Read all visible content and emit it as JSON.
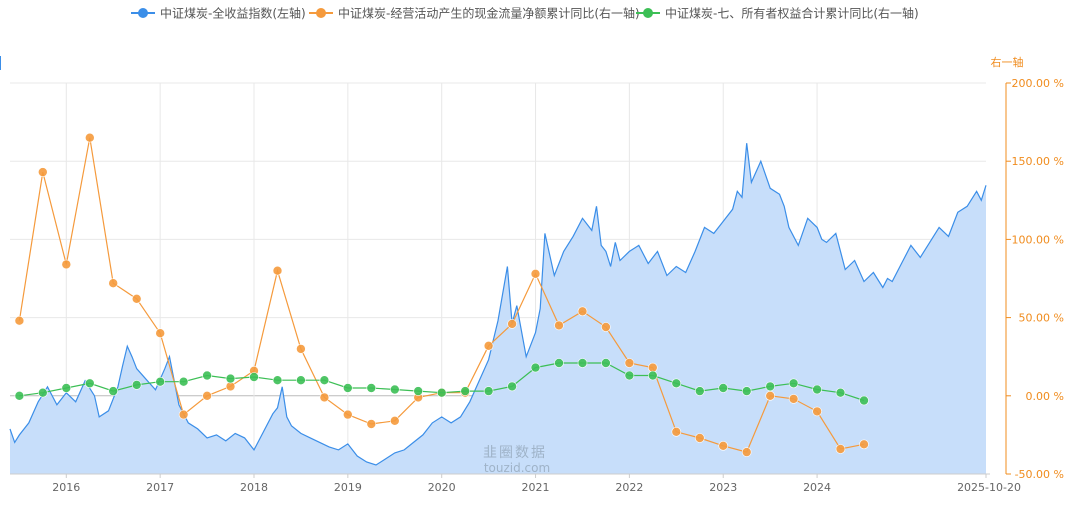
{
  "chart_data": {
    "type": "line",
    "legend_position": "top-center",
    "grid": true,
    "left_axis": {
      "label": "",
      "ylim": [
        -30,
        230
      ],
      "ticks": []
    },
    "right_axis": {
      "label": "右一轴",
      "ylim": [
        -50,
        200
      ],
      "tick_labels": [
        "200.00 %",
        "150.00 %",
        "100.00 %",
        "50.00 %",
        "0.00 %",
        "-50.00 %"
      ],
      "tick_values": [
        200,
        150,
        100,
        50,
        0,
        -50
      ]
    },
    "x_range": [
      2015.4,
      2025.8
    ],
    "x_tick_labels": [
      "2016",
      "2017",
      "2018",
      "2019",
      "2020",
      "2021",
      "2022",
      "2023",
      "2024",
      "2025-10-20"
    ],
    "x_tick_values": [
      2016,
      2017,
      2018,
      2019,
      2020,
      2021,
      2022,
      2023,
      2024,
      2025.8
    ],
    "series": [
      {
        "name": "中证煤炭-全收益指数(左轴)",
        "axis": "left",
        "kind": "area",
        "color": "#3b8ee8",
        "fill": "#c7defa",
        "x": [
          2015.4,
          2015.45,
          2015.5,
          2015.6,
          2015.7,
          2015.8,
          2015.9,
          2016.0,
          2016.1,
          2016.2,
          2016.3,
          2016.35,
          2016.45,
          2016.55,
          2016.6,
          2016.65,
          2016.7,
          2016.75,
          2016.85,
          2016.95,
          2017.05,
          2017.1,
          2017.2,
          2017.3,
          2017.4,
          2017.5,
          2017.6,
          2017.7,
          2017.8,
          2017.9,
          2018.0,
          2018.1,
          2018.2,
          2018.25,
          2018.3,
          2018.35,
          2018.4,
          2018.5,
          2018.6,
          2018.7,
          2018.8,
          2018.9,
          2019.0,
          2019.1,
          2019.2,
          2019.3,
          2019.4,
          2019.5,
          2019.6,
          2019.7,
          2019.8,
          2019.9,
          2020.0,
          2020.1,
          2020.2,
          2020.3,
          2020.4,
          2020.5,
          2020.6,
          2020.65,
          2020.7,
          2020.75,
          2020.8,
          2020.9,
          2021.0,
          2021.05,
          2021.1,
          2021.2,
          2021.3,
          2021.4,
          2021.5,
          2021.6,
          2021.65,
          2021.7,
          2021.75,
          2021.8,
          2021.85,
          2021.9,
          2022.0,
          2022.1,
          2022.2,
          2022.3,
          2022.4,
          2022.5,
          2022.6,
          2022.7,
          2022.8,
          2022.9,
          2023.0,
          2023.1,
          2023.15,
          2023.2,
          2023.25,
          2023.3,
          2023.4,
          2023.5,
          2023.6,
          2023.65,
          2023.7,
          2023.8,
          2023.9,
          2024.0,
          2024.05,
          2024.1,
          2024.2,
          2024.3,
          2024.4,
          2024.5,
          2024.6,
          2024.7,
          2024.75,
          2024.8,
          2024.9,
          2025.0,
          2025.1,
          2025.2,
          2025.3,
          2025.4,
          2025.5,
          2025.6,
          2025.7,
          2025.75,
          2025.8
        ],
        "values": [
          0,
          -9,
          -4,
          4,
          18,
          28,
          16,
          24,
          18,
          32,
          22,
          8,
          12,
          28,
          42,
          55,
          48,
          40,
          33,
          26,
          40,
          48,
          16,
          4,
          0,
          -6,
          -4,
          -8,
          -3,
          -6,
          -14,
          -2,
          10,
          14,
          28,
          8,
          2,
          -3,
          -6,
          -9,
          -12,
          -14,
          -10,
          -18,
          -22,
          -24,
          -20,
          -16,
          -14,
          -9,
          -4,
          4,
          8,
          4,
          8,
          18,
          32,
          46,
          72,
          90,
          108,
          70,
          82,
          48,
          64,
          80,
          130,
          102,
          118,
          128,
          140,
          132,
          148,
          122,
          118,
          108,
          124,
          112,
          118,
          122,
          110,
          118,
          102,
          108,
          104,
          118,
          134,
          130,
          138,
          146,
          158,
          154,
          190,
          164,
          178,
          160,
          156,
          148,
          134,
          122,
          140,
          134,
          126,
          124,
          130,
          106,
          112,
          98,
          104,
          94,
          100,
          98,
          110,
          122,
          114,
          124,
          134,
          128,
          144,
          148,
          158,
          152,
          162
        ]
      },
      {
        "name": "中证煤炭-经营活动产生的现金流量净额累计同比(右一轴)",
        "axis": "right",
        "kind": "line-markers",
        "color": "#f59a3c",
        "x": [
          2015.5,
          2015.75,
          2016.0,
          2016.25,
          2016.5,
          2016.75,
          2017.0,
          2017.25,
          2017.5,
          2017.75,
          2018.0,
          2018.25,
          2018.5,
          2018.75,
          2019.0,
          2019.25,
          2019.5,
          2019.75,
          2020.0,
          2020.25,
          2020.5,
          2020.75,
          2021.0,
          2021.25,
          2021.5,
          2021.75,
          2022.0,
          2022.25,
          2022.5,
          2022.75,
          2023.0,
          2023.25,
          2023.5,
          2023.75,
          2024.0,
          2024.25,
          2024.5
        ],
        "values": [
          48,
          143,
          84,
          165,
          72,
          62,
          40,
          -12,
          0,
          6,
          16,
          80,
          30,
          -1,
          -12,
          -18,
          -16,
          -1,
          2,
          2,
          32,
          46,
          78,
          45,
          54,
          44,
          21,
          18,
          -23,
          -27,
          -32,
          -36,
          0,
          -2,
          -10,
          -34,
          -31
        ]
      },
      {
        "name": "中证煤炭-七、所有者权益合计累计同比(右一轴)",
        "axis": "right",
        "kind": "line-markers",
        "color": "#3cbf55",
        "x": [
          2015.5,
          2015.75,
          2016.0,
          2016.25,
          2016.5,
          2016.75,
          2017.0,
          2017.25,
          2017.5,
          2017.75,
          2018.0,
          2018.25,
          2018.5,
          2018.75,
          2019.0,
          2019.25,
          2019.5,
          2019.75,
          2020.0,
          2020.25,
          2020.5,
          2020.75,
          2021.0,
          2021.25,
          2021.5,
          2021.75,
          2022.0,
          2022.25,
          2022.5,
          2022.75,
          2023.0,
          2023.25,
          2023.5,
          2023.75,
          2024.0,
          2024.25,
          2024.5
        ],
        "values": [
          0,
          2,
          5,
          8,
          3,
          7,
          9,
          9,
          13,
          11,
          12,
          10,
          10,
          10,
          5,
          5,
          4,
          3,
          2,
          3,
          3,
          6,
          18,
          21,
          21,
          21,
          13,
          13,
          8,
          3,
          5,
          3,
          6,
          8,
          4,
          2,
          -3
        ]
      }
    ],
    "watermark": [
      "韭圈数据",
      "touzid.com"
    ]
  },
  "colors": {
    "grid": "#e8e8e8",
    "axis": "#cccccc",
    "left_axis": "#3b8ee8",
    "right_axis": "#f08c1e"
  }
}
